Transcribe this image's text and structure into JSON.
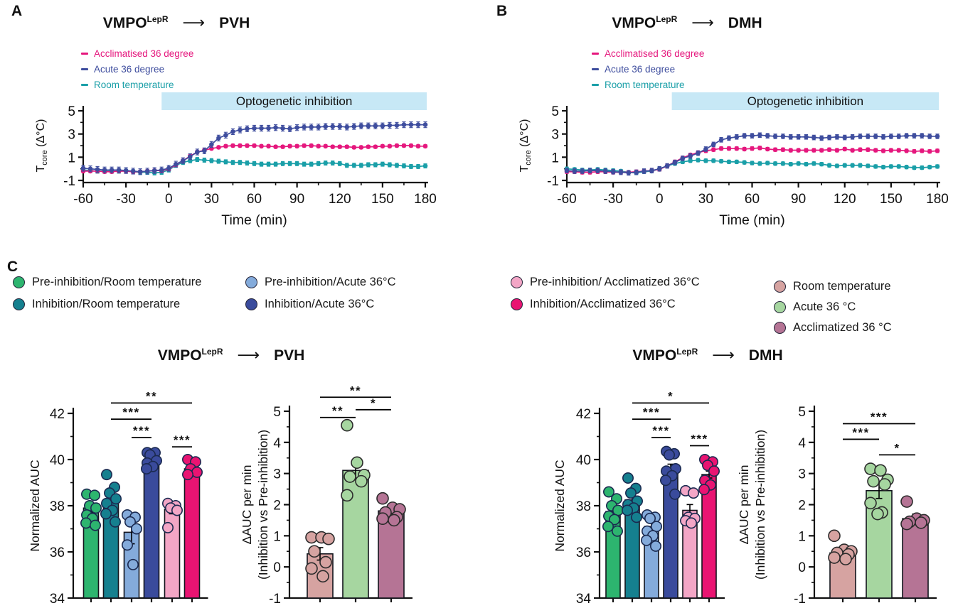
{
  "panels": {
    "A": {
      "label": "A",
      "title": {
        "pre": "VMPO",
        "sup": "LepR",
        "arrow": "⟶",
        "target": "PVH"
      },
      "legend": [
        {
          "label": "Acclimatised 36 degree",
          "color": "#e5177d"
        },
        {
          "label": "Acute 36 degree",
          "color": "#3e4d9e"
        },
        {
          "label": "Room temperature",
          "color": "#1a9fa8"
        }
      ]
    },
    "B": {
      "label": "B",
      "title": {
        "pre": "VMPO",
        "sup": "LepR",
        "arrow": "⟶",
        "target": "DMH"
      },
      "legend": [
        {
          "label": "Acclimatised 36 degree",
          "color": "#e5177d"
        },
        {
          "label": "Acute 36 degree",
          "color": "#3e4d9e"
        },
        {
          "label": "Room temperature",
          "color": "#1a9fa8"
        }
      ]
    },
    "C": {
      "label": "C",
      "title_left": {
        "pre": "VMPO",
        "sup": "LepR",
        "arrow": "⟶",
        "target": "PVH"
      },
      "title_right": {
        "pre": "VMPO",
        "sup": "LepR",
        "arrow": "⟶",
        "target": "DMH"
      },
      "groups": [
        {
          "items": [
            {
              "label": "Pre-inhibition/Room temperature",
              "color": "#2db56f"
            },
            {
              "label": "Inhibition/Room temperature",
              "color": "#15808f"
            }
          ]
        },
        {
          "items": [
            {
              "label": "Pre-inhibition/Acute 36°C",
              "color": "#84abdb"
            },
            {
              "label": "Inhibition/Acute 36°C",
              "color": "#3a4b9c"
            }
          ]
        },
        {
          "items": [
            {
              "label": "Pre-inhibition/ Acclimatized 36°C",
              "color": "#f3a6c6"
            },
            {
              "label": "Inhibition/Acclimatized 36°C",
              "color": "#e91472"
            }
          ]
        },
        {
          "items": [
            {
              "label": "Room temperature",
              "color": "#d6a3a1"
            },
            {
              "label": "Acute 36 °C",
              "color": "#a6d6a0"
            },
            {
              "label": "Acclimatized 36 °C",
              "color": "#b57495"
            }
          ]
        }
      ]
    }
  },
  "chart_data": [
    {
      "id": "line-pvh",
      "type": "line",
      "title": "VMPO-LepR to PVH",
      "xlabel": "Time (min)",
      "ylabel": "T core (Δ°C)",
      "xlim": [
        -60,
        180
      ],
      "ylim": [
        -1,
        5
      ],
      "xticks": [
        -60,
        -30,
        0,
        30,
        60,
        90,
        120,
        150,
        180
      ],
      "xminor": [
        -45,
        -15,
        15,
        45,
        75,
        105,
        135,
        165
      ],
      "yticks": [
        5,
        3,
        1,
        -1
      ],
      "yminor": [
        4,
        2,
        0
      ],
      "band": {
        "label": "Optogenetic inhibition",
        "from": -5,
        "to": 181,
        "color": "#c7e8f6"
      },
      "x": [
        -60,
        -55,
        -50,
        -45,
        -40,
        -35,
        -30,
        -25,
        -20,
        -15,
        -10,
        -5,
        0,
        5,
        10,
        15,
        20,
        25,
        30,
        35,
        40,
        45,
        50,
        55,
        60,
        65,
        70,
        75,
        80,
        85,
        90,
        95,
        100,
        105,
        110,
        115,
        120,
        125,
        130,
        135,
        140,
        145,
        150,
        155,
        160,
        165,
        170,
        175,
        180
      ],
      "series": [
        {
          "name": "Room temperature",
          "color": "#1a9fa8",
          "err": 0.18,
          "values": [
            -0.1,
            -0.15,
            -0.2,
            -0.2,
            -0.2,
            -0.2,
            -0.2,
            -0.25,
            -0.3,
            -0.3,
            -0.35,
            -0.3,
            -0.1,
            0.3,
            0.55,
            0.7,
            0.8,
            0.75,
            0.7,
            0.65,
            0.6,
            0.55,
            0.55,
            0.5,
            0.45,
            0.4,
            0.4,
            0.4,
            0.45,
            0.45,
            0.45,
            0.4,
            0.4,
            0.45,
            0.5,
            0.5,
            0.45,
            0.3,
            0.3,
            0.3,
            0.35,
            0.35,
            0.4,
            0.35,
            0.3,
            0.25,
            0.2,
            0.2,
            0.25
          ]
        },
        {
          "name": "Acclimatised 36 degree",
          "color": "#e5177d",
          "err": 0.13,
          "values": [
            -0.2,
            -0.2,
            -0.2,
            -0.25,
            -0.25,
            -0.2,
            -0.2,
            -0.25,
            -0.25,
            -0.2,
            -0.15,
            -0.15,
            0.0,
            0.35,
            0.7,
            1.1,
            1.45,
            1.6,
            1.75,
            1.85,
            1.95,
            2.0,
            2.0,
            2.0,
            2.0,
            1.95,
            1.95,
            1.9,
            1.9,
            1.95,
            1.95,
            2.0,
            2.0,
            1.95,
            1.95,
            1.9,
            1.9,
            1.9,
            1.85,
            1.85,
            1.9,
            1.9,
            1.95,
            1.95,
            2.0,
            2.0,
            2.0,
            1.95,
            1.95
          ]
        },
        {
          "name": "Acute 36 degree",
          "color": "#3e4d9e",
          "err": 0.25,
          "values": [
            0.05,
            0.0,
            -0.05,
            -0.1,
            -0.1,
            -0.1,
            -0.15,
            -0.2,
            -0.25,
            -0.2,
            -0.15,
            -0.1,
            0.05,
            0.4,
            0.7,
            1.05,
            1.45,
            1.55,
            2.1,
            2.65,
            2.9,
            3.2,
            3.35,
            3.45,
            3.5,
            3.5,
            3.5,
            3.55,
            3.5,
            3.45,
            3.55,
            3.6,
            3.6,
            3.6,
            3.65,
            3.65,
            3.65,
            3.6,
            3.65,
            3.7,
            3.7,
            3.7,
            3.7,
            3.75,
            3.75,
            3.8,
            3.8,
            3.8,
            3.8
          ]
        }
      ]
    },
    {
      "id": "line-dmh",
      "type": "line",
      "title": "VMPO-LepR to DMH",
      "xlabel": "Time (min)",
      "ylabel": "T core (Δ°C)",
      "xlim": [
        -60,
        180
      ],
      "ylim": [
        -1,
        5
      ],
      "xticks": [
        -60,
        -30,
        0,
        30,
        60,
        90,
        120,
        150,
        180
      ],
      "xminor": [
        -45,
        -15,
        15,
        45,
        75,
        105,
        135,
        165
      ],
      "yticks": [
        5,
        3,
        1,
        -1
      ],
      "yminor": [
        4,
        2,
        0
      ],
      "band": {
        "label": "Optogenetic inhibition",
        "from": 8,
        "to": 181,
        "color": "#c7e8f6"
      },
      "x": [
        -60,
        -55,
        -50,
        -45,
        -40,
        -35,
        -30,
        -25,
        -20,
        -15,
        -10,
        -5,
        0,
        5,
        10,
        15,
        20,
        25,
        30,
        35,
        40,
        45,
        50,
        55,
        60,
        65,
        70,
        75,
        80,
        85,
        90,
        95,
        100,
        105,
        110,
        115,
        120,
        125,
        130,
        135,
        140,
        145,
        150,
        155,
        160,
        165,
        170,
        175,
        180
      ],
      "series": [
        {
          "name": "Room temperature",
          "color": "#1a9fa8",
          "err": 0.15,
          "values": [
            0.0,
            -0.05,
            -0.1,
            -0.1,
            -0.05,
            -0.1,
            -0.15,
            -0.2,
            -0.3,
            -0.35,
            -0.25,
            -0.2,
            0.0,
            0.25,
            0.45,
            0.6,
            0.7,
            0.75,
            0.7,
            0.7,
            0.65,
            0.6,
            0.6,
            0.55,
            0.5,
            0.45,
            0.5,
            0.45,
            0.45,
            0.4,
            0.45,
            0.4,
            0.45,
            0.4,
            0.3,
            0.25,
            0.3,
            0.3,
            0.3,
            0.25,
            0.2,
            0.15,
            0.2,
            0.2,
            0.15,
            0.1,
            0.1,
            0.15,
            0.2
          ]
        },
        {
          "name": "Acclimatised 36 degree",
          "color": "#e5177d",
          "err": 0.15,
          "values": [
            -0.25,
            -0.25,
            -0.3,
            -0.3,
            -0.25,
            -0.25,
            -0.3,
            -0.3,
            -0.3,
            -0.25,
            -0.2,
            -0.15,
            -0.05,
            0.25,
            0.6,
            0.95,
            1.2,
            1.4,
            1.55,
            1.65,
            1.75,
            1.75,
            1.75,
            1.7,
            1.75,
            1.8,
            1.7,
            1.65,
            1.65,
            1.6,
            1.6,
            1.6,
            1.6,
            1.6,
            1.65,
            1.6,
            1.7,
            1.6,
            1.65,
            1.65,
            1.6,
            1.55,
            1.6,
            1.6,
            1.55,
            1.5,
            1.55,
            1.5,
            1.55
          ]
        },
        {
          "name": "Acute 36 degree",
          "color": "#3e4d9e",
          "err": 0.2,
          "values": [
            -0.15,
            -0.2,
            -0.2,
            -0.15,
            -0.15,
            -0.2,
            -0.25,
            -0.3,
            -0.35,
            -0.3,
            -0.2,
            -0.15,
            0.0,
            0.25,
            0.55,
            0.9,
            1.1,
            1.35,
            1.7,
            2.1,
            2.5,
            2.65,
            2.75,
            2.85,
            2.85,
            2.9,
            2.85,
            2.8,
            2.8,
            2.75,
            2.75,
            2.75,
            2.7,
            2.65,
            2.7,
            2.75,
            2.7,
            2.75,
            2.8,
            2.8,
            2.8,
            2.75,
            2.8,
            2.8,
            2.85,
            2.85,
            2.85,
            2.8,
            2.8
          ]
        }
      ]
    },
    {
      "id": "bar-pvh-auc",
      "type": "bar",
      "title": "VMPO-LepR to PVH",
      "ylabel": "Normalized AUC",
      "ylim": [
        34,
        42
      ],
      "yticks": [
        42,
        40,
        38,
        36,
        34
      ],
      "yminor": [
        41,
        39,
        37,
        35
      ],
      "categories": [
        "Pre-inhibition/Room temperature",
        "Inhibition/Room temperature",
        "Pre-inhibition/Acute 36°C",
        "Inhibition/Acute 36°C",
        "Pre-inhibition/Acclimatized 36°C",
        "Inhibition/Acclimatized 36°C"
      ],
      "colors": [
        "#2db56f",
        "#15808f",
        "#84abdb",
        "#3a4b9c",
        "#f3a6c6",
        "#e91472"
      ],
      "values": [
        37.9,
        38.25,
        36.85,
        40.0,
        37.85,
        39.6
      ],
      "errors": [
        0.18,
        0.25,
        0.5,
        0.12,
        0.2,
        0.12
      ],
      "points": [
        [
          38.5,
          38.45,
          38.0,
          37.9,
          37.6,
          37.45,
          37.25,
          37.15
        ],
        [
          39.35,
          38.8,
          38.55,
          38.3,
          38.1,
          37.8,
          37.65,
          37.3
        ],
        [
          37.6,
          37.5,
          37.3,
          37.0,
          36.3,
          35.45
        ],
        [
          40.3,
          40.3,
          40.2,
          39.95,
          39.85,
          39.7,
          39.6
        ],
        [
          38.1,
          38.0,
          37.9,
          37.8,
          37.05
        ],
        [
          40.0,
          39.9,
          39.6,
          39.45,
          39.35
        ]
      ],
      "sig": [
        {
          "from": 1,
          "to": 5,
          "label": "**",
          "y": 42.45
        },
        {
          "from": 1,
          "to": 3,
          "label": "***",
          "y": 41.75
        },
        {
          "from": 2,
          "to": 3,
          "label": "***",
          "y": 40.95
        },
        {
          "from": 4,
          "to": 5,
          "label": "***",
          "y": 40.55
        }
      ]
    },
    {
      "id": "bar-pvh-dauc",
      "type": "bar",
      "title": "VMPO-LepR to PVH",
      "ylabel_lines": [
        "ΔAUC per min",
        "(Inhibition vs Pre-inhibition)"
      ],
      "ylim": [
        -1,
        5
      ],
      "yticks": [
        5,
        4,
        3,
        2,
        1,
        0,
        -1
      ],
      "yminor": [
        4.5,
        3.5,
        2.5,
        1.5,
        0.5,
        -0.5
      ],
      "categories": [
        "Room temperature",
        "Acute 36 °C",
        "Acclimatized 36 °C"
      ],
      "colors": [
        "#d6a3a1",
        "#a6d6a0",
        "#b57495"
      ],
      "values": [
        0.42,
        3.1,
        1.8
      ],
      "errors": [
        0.2,
        0.3,
        0.1
      ],
      "points": [
        [
          0.95,
          0.95,
          0.9,
          0.5,
          0.15,
          -0.05,
          -0.3
        ],
        [
          4.55,
          3.35,
          2.95,
          2.9,
          2.75,
          2.3
        ],
        [
          2.2,
          1.9,
          1.85,
          1.75,
          1.6,
          1.55,
          1.5
        ]
      ],
      "sig": [
        {
          "from": 0,
          "to": 2,
          "label": "**",
          "y": 5.45
        },
        {
          "from": 1,
          "to": 2,
          "label": "*",
          "y": 5.05
        },
        {
          "from": 0,
          "to": 1,
          "label": "**",
          "y": 4.8
        }
      ]
    },
    {
      "id": "bar-dmh-auc",
      "type": "bar",
      "title": "VMPO-LepR to DMH",
      "ylabel": "Normalized AUC",
      "ylim": [
        34,
        42
      ],
      "yticks": [
        42,
        40,
        38,
        36,
        34
      ],
      "yminor": [
        41,
        39,
        37,
        35
      ],
      "categories": [
        "Pre-inhibition/Room temperature",
        "Inhibition/Room temperature",
        "Pre-inhibition/Acute 36°C",
        "Inhibition/Acute 36°C",
        "Pre-inhibition/Acclimatized 36°C",
        "Inhibition/Acclimatized 36°C"
      ],
      "colors": [
        "#2db56f",
        "#15808f",
        "#84abdb",
        "#3a4b9c",
        "#f3a6c6",
        "#e91472"
      ],
      "values": [
        37.75,
        38.25,
        37.1,
        39.55,
        37.8,
        39.35
      ],
      "errors": [
        0.2,
        0.2,
        0.2,
        0.25,
        0.25,
        0.15
      ],
      "points": [
        [
          38.6,
          38.3,
          38.0,
          37.8,
          37.55,
          37.4,
          37.1,
          36.9
        ],
        [
          39.2,
          38.75,
          38.55,
          38.2,
          38.05,
          37.9,
          37.8,
          37.5
        ],
        [
          37.6,
          37.5,
          37.45,
          37.1,
          36.9,
          36.7,
          36.5,
          36.25
        ],
        [
          40.35,
          40.25,
          40.2,
          39.6,
          39.5,
          39.3,
          39.1,
          38.5
        ],
        [
          38.65,
          38.55,
          37.5,
          37.45,
          37.35,
          37.25
        ],
        [
          40.0,
          39.9,
          39.75,
          39.5,
          39.1,
          38.9,
          38.7
        ]
      ],
      "sig": [
        {
          "from": 1,
          "to": 5,
          "label": "*",
          "y": 42.45
        },
        {
          "from": 1,
          "to": 3,
          "label": "***",
          "y": 41.75
        },
        {
          "from": 2,
          "to": 3,
          "label": "***",
          "y": 40.95
        },
        {
          "from": 4,
          "to": 5,
          "label": "***",
          "y": 40.6
        }
      ]
    },
    {
      "id": "bar-dmh-dauc",
      "type": "bar",
      "title": "VMPO-LepR to DMH",
      "ylabel_lines": [
        "ΔAUC per min",
        "(Inhibition vs Pre-inhibition)"
      ],
      "ylim": [
        -1,
        5
      ],
      "yticks": [
        5,
        4,
        3,
        2,
        1,
        0,
        -1
      ],
      "yminor": [
        4.5,
        3.5,
        2.5,
        1.5,
        0.5,
        -0.5
      ],
      "categories": [
        "Room temperature",
        "Acute 36 °C",
        "Acclimatized 36 °C"
      ],
      "colors": [
        "#d6a3a1",
        "#a6d6a0",
        "#b57495"
      ],
      "values": [
        0.45,
        2.45,
        1.55
      ],
      "errors": [
        0.1,
        0.25,
        0.15
      ],
      "points": [
        [
          1.0,
          0.55,
          0.5,
          0.45,
          0.4,
          0.3,
          0.25
        ],
        [
          3.15,
          3.1,
          2.8,
          2.75,
          2.65,
          2.05,
          1.75,
          1.7
        ],
        [
          2.1,
          1.55,
          1.5,
          1.45,
          1.42,
          1.38
        ]
      ],
      "sig": [
        {
          "from": 0,
          "to": 2,
          "label": "***",
          "y": 4.6
        },
        {
          "from": 0,
          "to": 1,
          "label": "***",
          "y": 4.1
        },
        {
          "from": 1,
          "to": 2,
          "label": "*",
          "y": 3.6
        }
      ]
    }
  ]
}
